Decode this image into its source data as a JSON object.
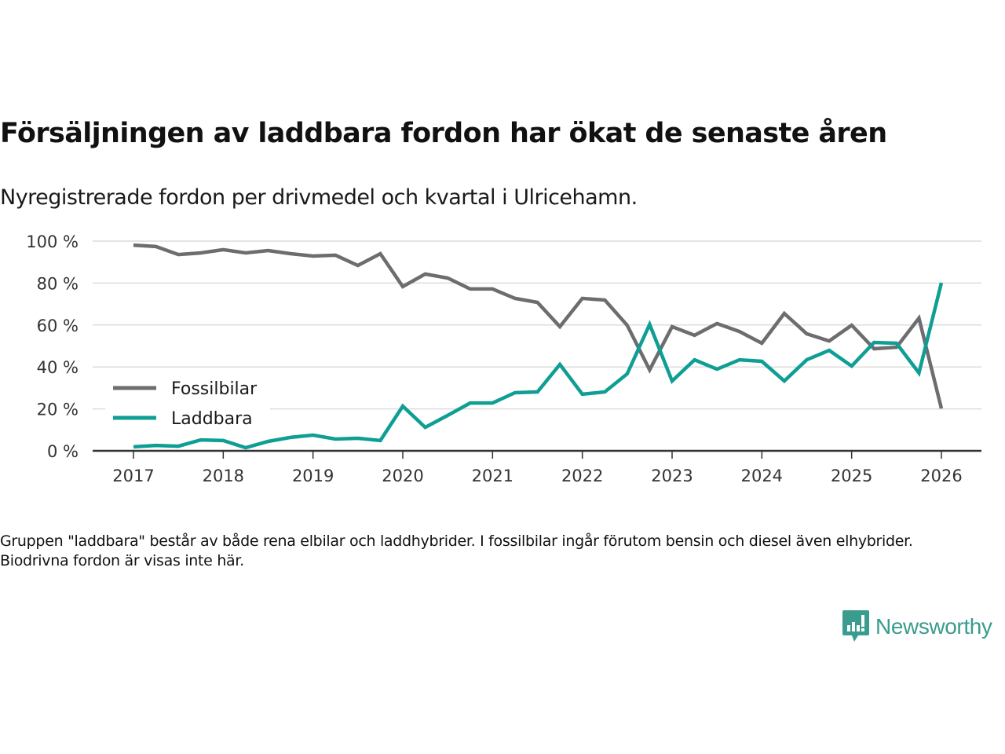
{
  "header": {
    "title": "Försäljningen av laddbara fordon har ökat de senaste åren",
    "subtitle": "Nyregistrerade fordon per drivmedel och kvartal i Ulricehamn."
  },
  "footer": {
    "note": "Gruppen \"laddbara\" består av både rena elbilar och laddhybrider. I fossilbilar ingår förutom bensin och diesel även elhybrider. Biodrivna fordon är visas inte här.",
    "logo_text": "Newsworthy",
    "logo_color": "#3a9c8e"
  },
  "chart_data": {
    "type": "line",
    "title": "Försäljningen av laddbara fordon har ökat de senaste åren",
    "subtitle": "Nyregistrerade fordon per drivmedel och kvartal i Ulricehamn.",
    "xlabel": "",
    "ylabel": "",
    "x_start": 2017.0,
    "x_step": 0.25,
    "xlim": [
      2016.55,
      2026.45
    ],
    "ylim": [
      0,
      100
    ],
    "y_ticks": [
      0,
      20,
      40,
      60,
      80,
      100
    ],
    "y_tick_labels": [
      "0 %",
      "20 %",
      "40 %",
      "60 %",
      "80 %",
      "100 %"
    ],
    "x_ticks": [
      2017,
      2018,
      2019,
      2020,
      2021,
      2022,
      2023,
      2024,
      2025,
      2026
    ],
    "x_tick_labels": [
      "2017",
      "2018",
      "2019",
      "2020",
      "2021",
      "2022",
      "2023",
      "2024",
      "2025",
      "2026"
    ],
    "grid": true,
    "legend_position": "bottom-left",
    "series": [
      {
        "name": "Fossilbilar",
        "color": "#6d6d70",
        "values": [
          98.1,
          97.4,
          93.6,
          94.4,
          95.9,
          94.4,
          95.5,
          94.0,
          92.9,
          93.3,
          88.4,
          94.0,
          78.3,
          84.3,
          82.4,
          77.2,
          77.2,
          72.7,
          70.8,
          59.2,
          72.7,
          71.9,
          59.9,
          38.6,
          59.2,
          55.1,
          60.7,
          56.9,
          51.3,
          65.5,
          55.8,
          52.4,
          59.9,
          48.7,
          49.4,
          63.3,
          20.2
        ]
      },
      {
        "name": "Laddbara",
        "color": "#0f9e94",
        "values": [
          1.9,
          2.6,
          2.2,
          5.2,
          4.9,
          1.5,
          4.5,
          6.4,
          7.5,
          5.6,
          6.0,
          4.9,
          21.3,
          11.2,
          16.9,
          22.8,
          22.8,
          27.7,
          28.1,
          41.2,
          27.0,
          28.1,
          36.7,
          60.3,
          33.3,
          43.4,
          38.9,
          43.4,
          42.7,
          33.3,
          43.4,
          47.9,
          40.4,
          51.7,
          51.3,
          37.1,
          80.1
        ]
      }
    ]
  }
}
